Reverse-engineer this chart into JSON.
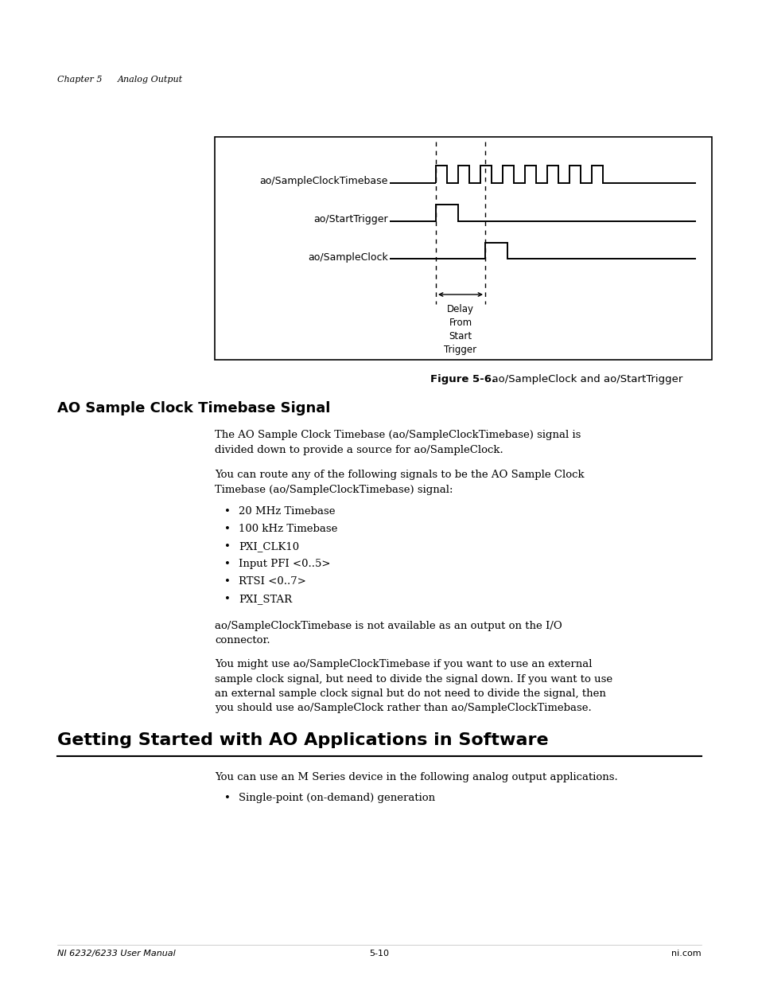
{
  "page_title_left": "Chapter 5",
  "page_title_right": "Analog Output",
  "figure_caption_bold": "Figure 5-6.",
  "figure_caption_normal": "  ao/SampleClock and ao/StartTrigger",
  "section1_title": "AO Sample Clock Timebase Signal",
  "section1_p1": "The AO Sample Clock Timebase (ao/SampleClockTimebase) signal is\ndivided down to provide a source for ao/SampleClock.",
  "section1_p2": "You can route any of the following signals to be the AO Sample Clock\nTimebase (ao/SampleClockTimebase) signal:",
  "bullet_items": [
    "20 MHz Timebase",
    "100 kHz Timebase",
    "PXI_CLK10",
    "Input PFI <0..5>",
    "RTSI <0..7>",
    "PXI_STAR"
  ],
  "section1_p3": "ao/SampleClockTimebase is not available as an output on the I/O\nconnector.",
  "section1_p4": "You might use ao/SampleClockTimebase if you want to use an external\nsample clock signal, but need to divide the signal down. If you want to use\nan external sample clock signal but do not need to divide the signal, then\nyou should use ao/SampleClock rather than ao/SampleClockTimebase.",
  "section2_title": "Getting Started with AO Applications in Software",
  "section2_p1": "You can use an M Series device in the following analog output applications.",
  "section2_bullets": [
    "Single-point (on-demand) generation"
  ],
  "footer_left": "NI 6232/6233 User Manual",
  "footer_center": "5-10",
  "footer_right": "ni.com",
  "bg_color": "#ffffff",
  "text_color": "#000000"
}
